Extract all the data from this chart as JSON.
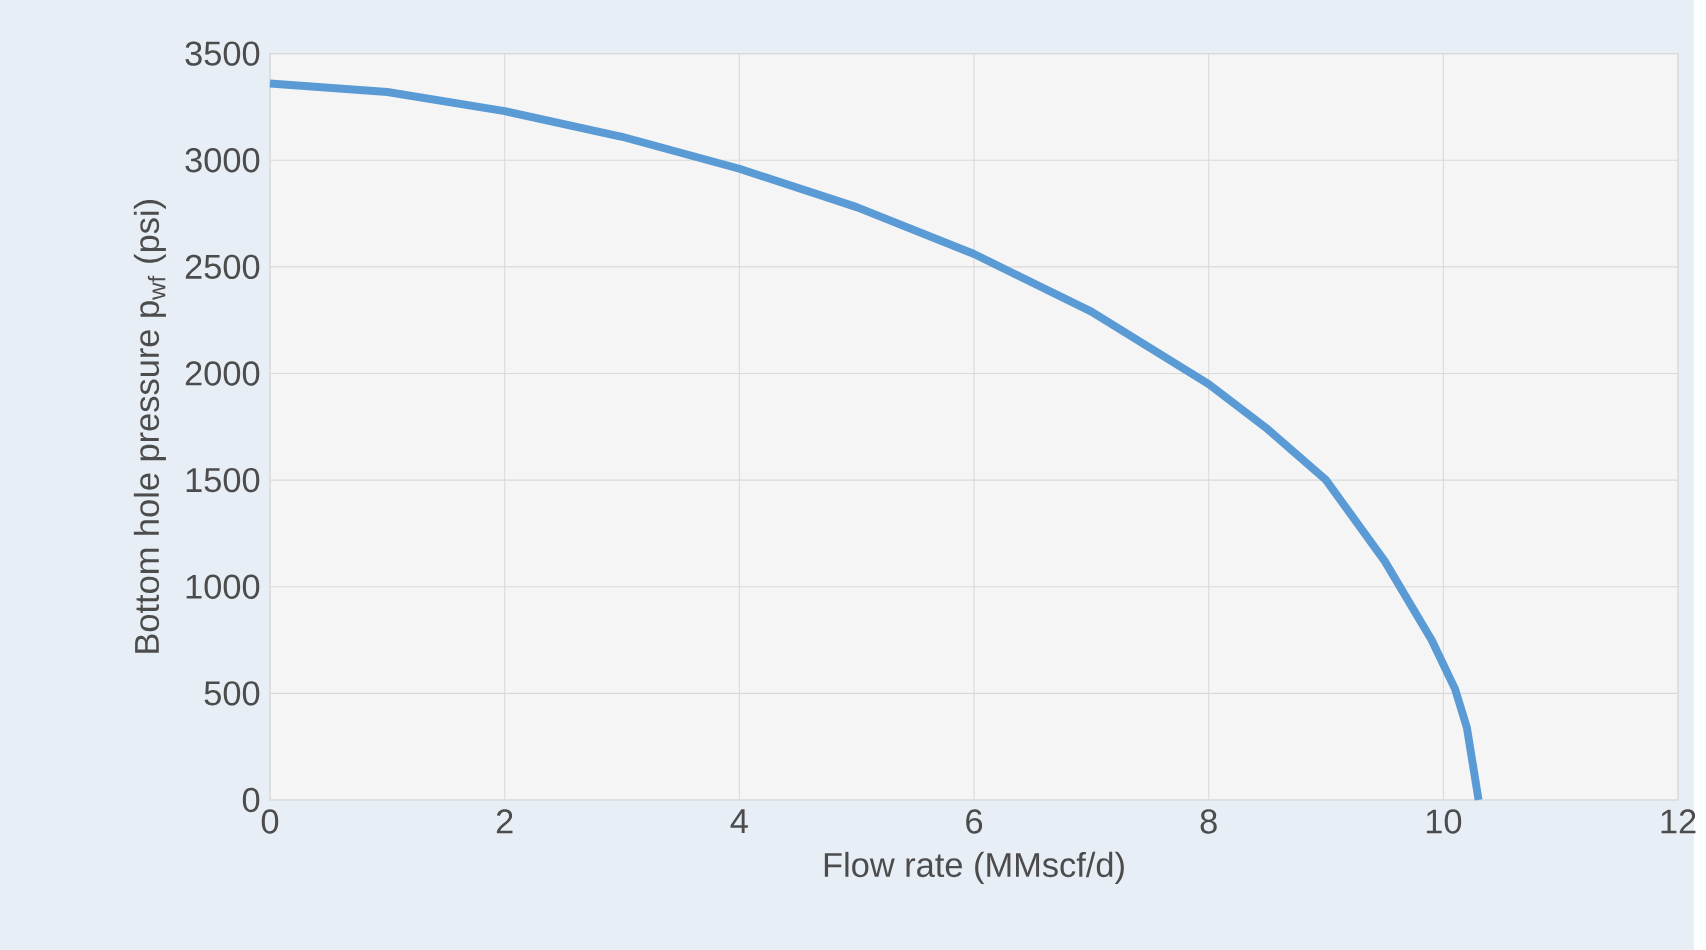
{
  "chart_data": {
    "type": "line",
    "xlabel": "Flow rate (MMscf/d)",
    "ylabel": "Bottom hole pressure p$_{wf}$ (psi)",
    "x": [
      0,
      1,
      2,
      3,
      4,
      5,
      6,
      7,
      8,
      8.5,
      9,
      9.5,
      9.9,
      10.1,
      10.2,
      10.3
    ],
    "series": [
      {
        "color": "#5b9bd5",
        "values": [
          3360,
          3320,
          3230,
          3110,
          2960,
          2780,
          2560,
          2290,
          1950,
          1740,
          1500,
          1120,
          750,
          520,
          340,
          0
        ]
      }
    ],
    "xlim": [
      0,
      12
    ],
    "xticks": [
      0,
      2,
      4,
      6,
      8,
      10,
      12
    ],
    "ylim": [
      0,
      3500
    ],
    "yticks": [
      0,
      500,
      1000,
      1500,
      2000,
      2500,
      3000,
      3500
    ],
    "grid": true,
    "marker": "none",
    "line_style": "solid"
  }
}
